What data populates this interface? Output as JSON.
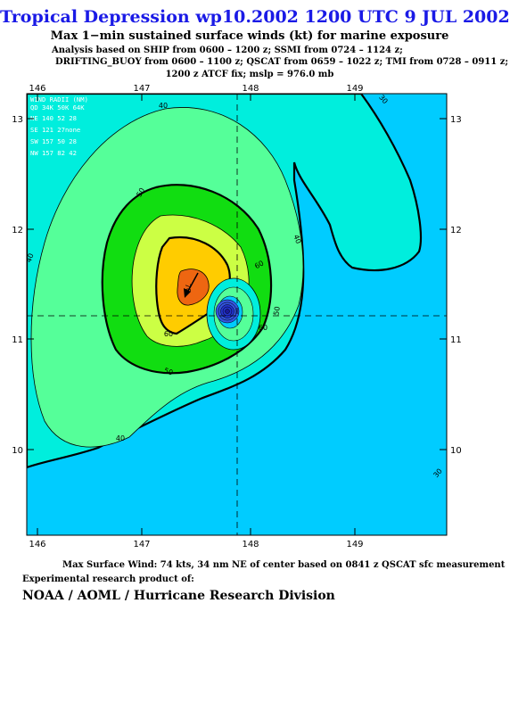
{
  "header": {
    "title": "Tropical Depression wp10.2002 1200 UTC 9 JUL 2002",
    "subtitle": "Max 1−min sustained surface winds (kt) for marine exposure",
    "analysis_line1": "Analysis based on  SHIP from 0600 – 1200 z;  SSMI from 0724 – 1124 z;",
    "analysis_line2": "DRIFTING_BUOY from 0600 – 1100 z;  QSCAT from 0659 – 1022 z;  TMI from 0728 – 0911 z;",
    "analysis_line3": "1200 z ATCF fix; mslp = 976.0 mb"
  },
  "map": {
    "x_ticks": [
      "146",
      "147",
      "148",
      "149"
    ],
    "y_ticks": [
      "13",
      "12",
      "11",
      "10"
    ],
    "center_lon": 147.9,
    "center_lat": 11.2,
    "contour_labels": [
      "40",
      "30",
      "50",
      "40",
      "60",
      "70",
      "60",
      "50",
      "50",
      "60",
      "40",
      "30",
      "40"
    ],
    "colors": {
      "under_30": "#00ccff",
      "30_40": "#00eedd",
      "40_50": "#55ff99",
      "50_60": "#11dd11",
      "60_70": "#ccff44",
      "70_plus": "#ffcc00",
      "core": "#ee6611",
      "eye": "#2233cc"
    }
  },
  "wind_radii": {
    "header1": "WIND RADII (NM)",
    "header2": "QD 34K 50K 64K",
    "rows": [
      "NE 140  52  28",
      "SE 121  27none",
      "SW 157  50  28",
      "NW 157  82  42"
    ]
  },
  "footer": {
    "max_wind": "Max Surface Wind: 74 kts, 34 nm NE of center based on 0841 z QSCAT sfc measurement",
    "product": "Experimental research product of:",
    "org": "NOAA / AOML / Hurricane Research Division"
  }
}
